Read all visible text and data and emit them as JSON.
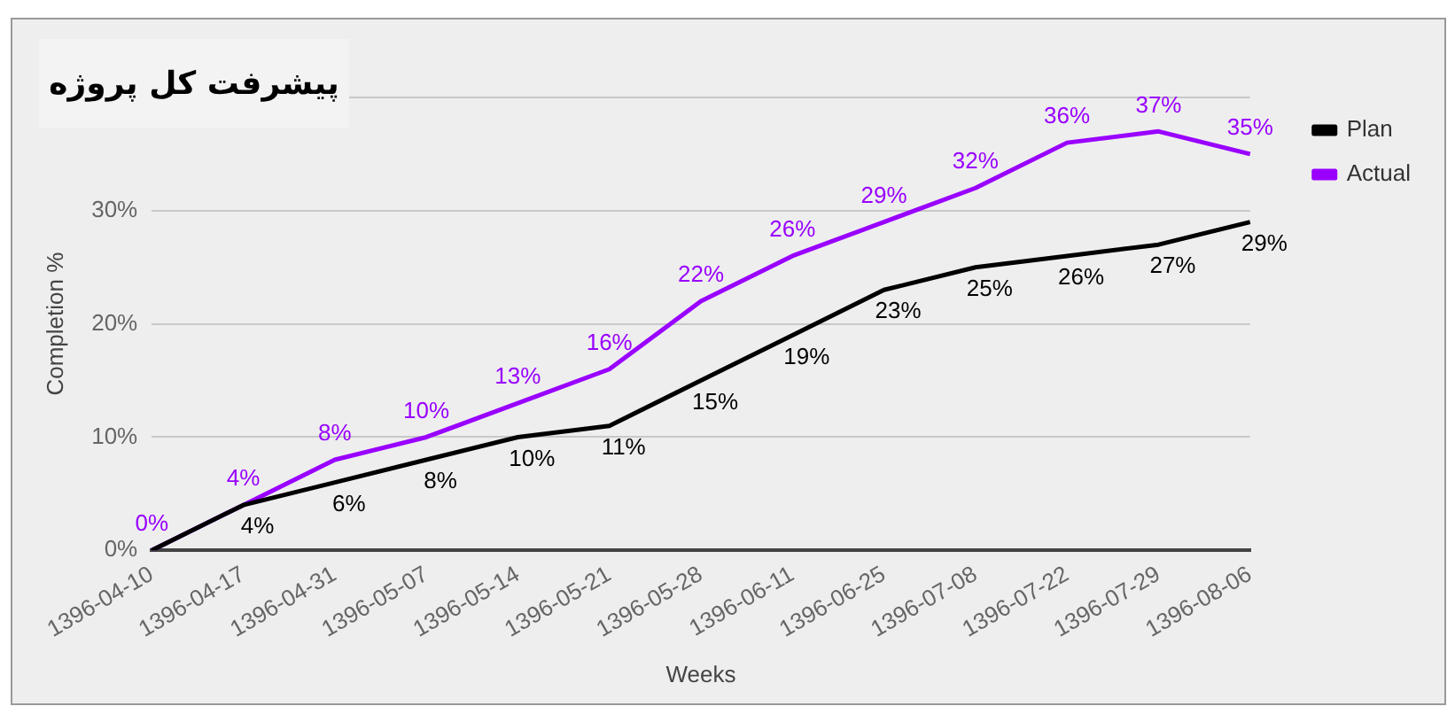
{
  "chart_data": {
    "type": "line",
    "title": "پیشرفت کل پروژه",
    "xlabel": "Weeks",
    "ylabel": "Completion %",
    "categories": [
      "1396-04-10",
      "1396-04-17",
      "1396-04-31",
      "1396-05-07",
      "1396-05-14",
      "1396-05-21",
      "1396-05-28",
      "1396-06-11",
      "1396-06-25",
      "1396-07-08",
      "1396-07-22",
      "1396-07-29",
      "1396-08-06"
    ],
    "series": [
      {
        "name": "Plan",
        "color": "#000000",
        "values": [
          0,
          4,
          6,
          8,
          10,
          11,
          15,
          19,
          23,
          25,
          26,
          27,
          29
        ],
        "value_labels": [
          null,
          "4%",
          "6%",
          "8%",
          "10%",
          "11%",
          "15%",
          "19%",
          "23%",
          "25%",
          "26%",
          "27%",
          "29%"
        ]
      },
      {
        "name": "Actual",
        "color": "#9900ff",
        "values": [
          0,
          4,
          8,
          10,
          13,
          16,
          22,
          26,
          29,
          32,
          36,
          37,
          35
        ],
        "value_labels": [
          "0%",
          "4%",
          "8%",
          "10%",
          "13%",
          "16%",
          "22%",
          "26%",
          "29%",
          "32%",
          "36%",
          "37%",
          "35%"
        ]
      }
    ],
    "ylim": [
      0,
      40
    ],
    "yticks": [
      {
        "value": 0,
        "label": "0%"
      },
      {
        "value": 10,
        "label": "10%"
      },
      {
        "value": 20,
        "label": "20%"
      },
      {
        "value": 30,
        "label": "30%"
      },
      {
        "value": 40,
        "label": null
      }
    ],
    "grid": "y",
    "legend": "right",
    "marker": "none",
    "line_style": "solid"
  }
}
